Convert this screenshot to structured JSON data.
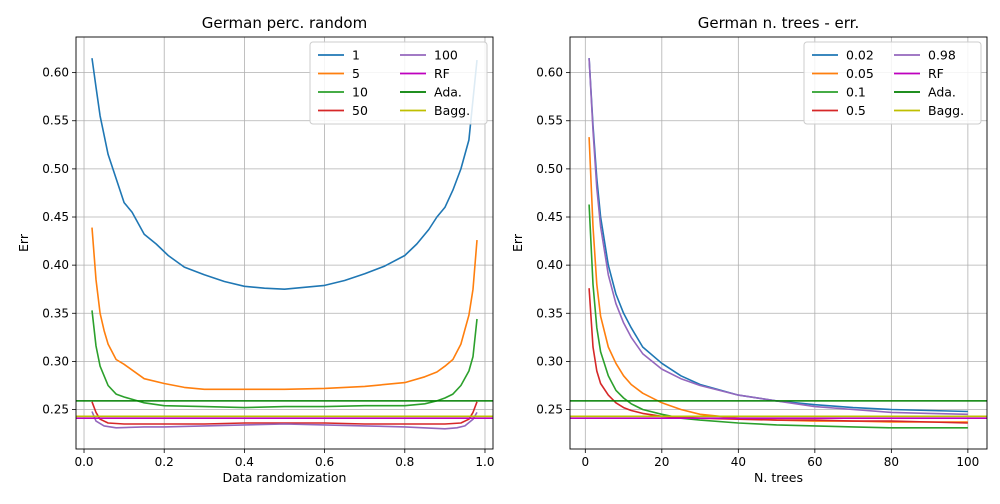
{
  "colors": {
    "blue": "#1f77b4",
    "orange": "#ff7f0e",
    "green": "#2ca02c",
    "red": "#d62728",
    "purple": "#9467bd",
    "magenta": "#bf00bf",
    "darkgreen": "#007f00",
    "olive": "#bfbf00"
  },
  "chart_data": [
    {
      "type": "line",
      "title": "German perc. random",
      "xlabel": "Data randomization",
      "ylabel": "Err",
      "xlim": [
        -0.02,
        1.02
      ],
      "ylim": [
        0.209,
        0.637
      ],
      "xticks": [
        "0.0",
        "0.2",
        "0.4",
        "0.6",
        "0.8",
        "1.0"
      ],
      "yticks": [
        "0.25",
        "0.30",
        "0.35",
        "0.40",
        "0.45",
        "0.50",
        "0.55",
        "0.60"
      ],
      "grid": true,
      "legend": "top-right",
      "legend_columns": 2,
      "series": [
        {
          "name": "1",
          "color": "blue",
          "x": [
            0.02,
            0.03,
            0.04,
            0.06,
            0.08,
            0.1,
            0.12,
            0.15,
            0.18,
            0.21,
            0.25,
            0.3,
            0.35,
            0.4,
            0.45,
            0.5,
            0.55,
            0.6,
            0.65,
            0.7,
            0.75,
            0.8,
            0.83,
            0.86,
            0.88,
            0.9,
            0.92,
            0.94,
            0.96,
            0.98
          ],
          "y": [
            0.615,
            0.585,
            0.555,
            0.515,
            0.49,
            0.465,
            0.455,
            0.432,
            0.422,
            0.41,
            0.398,
            0.39,
            0.383,
            0.378,
            0.376,
            0.375,
            0.377,
            0.379,
            0.384,
            0.391,
            0.399,
            0.41,
            0.422,
            0.437,
            0.45,
            0.46,
            0.478,
            0.5,
            0.53,
            0.613
          ]
        },
        {
          "name": "5",
          "color": "orange",
          "x": [
            0.02,
            0.03,
            0.04,
            0.05,
            0.06,
            0.08,
            0.1,
            0.15,
            0.2,
            0.25,
            0.3,
            0.4,
            0.5,
            0.6,
            0.7,
            0.8,
            0.85,
            0.88,
            0.9,
            0.92,
            0.94,
            0.95,
            0.96,
            0.97,
            0.98
          ],
          "y": [
            0.439,
            0.385,
            0.35,
            0.332,
            0.318,
            0.302,
            0.297,
            0.282,
            0.277,
            0.273,
            0.271,
            0.271,
            0.271,
            0.272,
            0.274,
            0.278,
            0.284,
            0.289,
            0.295,
            0.302,
            0.318,
            0.333,
            0.348,
            0.375,
            0.426
          ]
        },
        {
          "name": "10",
          "color": "green",
          "x": [
            0.02,
            0.03,
            0.04,
            0.06,
            0.08,
            0.1,
            0.15,
            0.2,
            0.3,
            0.4,
            0.5,
            0.6,
            0.7,
            0.8,
            0.85,
            0.88,
            0.9,
            0.92,
            0.94,
            0.96,
            0.97,
            0.98
          ],
          "y": [
            0.353,
            0.316,
            0.295,
            0.275,
            0.266,
            0.263,
            0.257,
            0.254,
            0.253,
            0.252,
            0.253,
            0.253,
            0.254,
            0.254,
            0.256,
            0.259,
            0.262,
            0.266,
            0.275,
            0.29,
            0.305,
            0.344
          ]
        },
        {
          "name": "50",
          "color": "red",
          "x": [
            0.02,
            0.03,
            0.04,
            0.06,
            0.1,
            0.2,
            0.3,
            0.4,
            0.5,
            0.6,
            0.7,
            0.8,
            0.9,
            0.94,
            0.96,
            0.97,
            0.98
          ],
          "y": [
            0.258,
            0.247,
            0.24,
            0.236,
            0.235,
            0.235,
            0.235,
            0.236,
            0.236,
            0.236,
            0.235,
            0.235,
            0.235,
            0.236,
            0.24,
            0.247,
            0.258
          ]
        },
        {
          "name": "100",
          "color": "purple",
          "x": [
            0.02,
            0.03,
            0.05,
            0.08,
            0.15,
            0.2,
            0.3,
            0.4,
            0.5,
            0.6,
            0.7,
            0.8,
            0.9,
            0.93,
            0.95,
            0.97,
            0.98
          ],
          "y": [
            0.248,
            0.238,
            0.233,
            0.231,
            0.232,
            0.232,
            0.233,
            0.234,
            0.235,
            0.234,
            0.233,
            0.232,
            0.23,
            0.231,
            0.233,
            0.24,
            0.247
          ]
        },
        {
          "name": "RF",
          "color": "magenta",
          "hline": 0.241
        },
        {
          "name": "Ada.",
          "color": "darkgreen",
          "hline": 0.259
        },
        {
          "name": "Bagg.",
          "color": "olive",
          "hline": 0.243
        }
      ]
    },
    {
      "type": "line",
      "title": "German n. trees - err.",
      "xlabel": "N. trees",
      "ylabel": "Err",
      "xlim": [
        -4,
        105
      ],
      "ylim": [
        0.209,
        0.637
      ],
      "xticks": [
        "0",
        "20",
        "40",
        "60",
        "80",
        "100"
      ],
      "yticks": [
        "0.25",
        "0.30",
        "0.35",
        "0.40",
        "0.45",
        "0.50",
        "0.55",
        "0.60"
      ],
      "grid": true,
      "legend": "top-right",
      "legend_columns": 2,
      "series": [
        {
          "name": "0.02",
          "color": "blue",
          "x": [
            1,
            2,
            3,
            4,
            6,
            8,
            10,
            12,
            15,
            20,
            25,
            30,
            40,
            50,
            60,
            70,
            80,
            90,
            100
          ],
          "y": [
            0.615,
            0.545,
            0.49,
            0.45,
            0.4,
            0.37,
            0.35,
            0.335,
            0.315,
            0.298,
            0.285,
            0.276,
            0.265,
            0.259,
            0.255,
            0.252,
            0.25,
            0.249,
            0.248
          ]
        },
        {
          "name": "0.05",
          "color": "orange",
          "x": [
            1,
            2,
            3,
            4,
            6,
            8,
            10,
            12,
            15,
            20,
            25,
            30,
            40,
            50,
            60,
            70,
            80,
            90,
            100
          ],
          "y": [
            0.533,
            0.44,
            0.38,
            0.347,
            0.315,
            0.298,
            0.285,
            0.276,
            0.267,
            0.257,
            0.25,
            0.245,
            0.241,
            0.239,
            0.238,
            0.238,
            0.237,
            0.237,
            0.237
          ]
        },
        {
          "name": "0.1",
          "color": "green",
          "x": [
            1,
            2,
            3,
            4,
            6,
            8,
            10,
            12,
            15,
            20,
            25,
            30,
            40,
            50,
            60,
            70,
            80,
            90,
            100
          ],
          "y": [
            0.463,
            0.38,
            0.335,
            0.31,
            0.285,
            0.27,
            0.262,
            0.256,
            0.25,
            0.245,
            0.241,
            0.239,
            0.236,
            0.234,
            0.233,
            0.232,
            0.231,
            0.231,
            0.231
          ]
        },
        {
          "name": "0.5",
          "color": "red",
          "x": [
            1,
            2,
            3,
            4,
            6,
            8,
            10,
            12,
            15,
            20,
            30,
            40,
            50,
            60,
            70,
            80,
            90,
            100
          ],
          "y": [
            0.376,
            0.315,
            0.29,
            0.277,
            0.265,
            0.257,
            0.252,
            0.249,
            0.246,
            0.243,
            0.241,
            0.24,
            0.239,
            0.239,
            0.238,
            0.238,
            0.237,
            0.236
          ]
        },
        {
          "name": "0.98",
          "color": "purple",
          "x": [
            1,
            2,
            3,
            4,
            6,
            8,
            10,
            12,
            15,
            20,
            25,
            30,
            40,
            50,
            60,
            70,
            80,
            90,
            100
          ],
          "y": [
            0.615,
            0.54,
            0.48,
            0.44,
            0.39,
            0.36,
            0.34,
            0.325,
            0.308,
            0.292,
            0.282,
            0.275,
            0.265,
            0.259,
            0.253,
            0.25,
            0.247,
            0.246,
            0.245
          ]
        },
        {
          "name": "RF",
          "color": "magenta",
          "hline": 0.241
        },
        {
          "name": "Ada.",
          "color": "darkgreen",
          "hline": 0.259
        },
        {
          "name": "Bagg.",
          "color": "olive",
          "hline": 0.243
        }
      ]
    }
  ]
}
